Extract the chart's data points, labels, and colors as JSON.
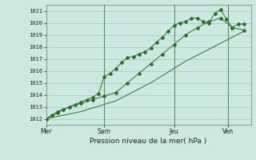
{
  "title": "Pression niveau de la mer( hPa )",
  "ylabel_ticks": [
    1012,
    1013,
    1014,
    1015,
    1016,
    1017,
    1018,
    1019,
    1020,
    1021
  ],
  "ylim": [
    1011.5,
    1021.5
  ],
  "bg_color": "#cce8e0",
  "grid_color": "#99ccbb",
  "line_color": "#2d6e2d",
  "vline_color": "#4a8a4a",
  "series1_x": [
    0,
    0.25,
    0.5,
    0.75,
    1.0,
    1.25,
    1.5,
    1.75,
    2.0,
    2.25,
    2.5,
    2.75,
    3.0,
    3.25,
    3.5,
    3.75,
    4.0,
    4.25,
    4.5,
    4.75,
    5.0,
    5.25,
    5.5,
    5.75,
    6.0,
    6.25,
    6.5,
    6.75,
    7.0,
    7.25,
    7.5,
    7.75,
    8.0,
    8.25,
    8.5
  ],
  "series1_y": [
    1012.0,
    1012.3,
    1012.6,
    1012.8,
    1013.0,
    1013.2,
    1013.4,
    1013.6,
    1013.8,
    1014.1,
    1015.5,
    1015.8,
    1016.2,
    1016.7,
    1017.1,
    1017.2,
    1017.4,
    1017.6,
    1017.9,
    1018.4,
    1018.8,
    1019.3,
    1019.8,
    1020.0,
    1020.1,
    1020.4,
    1020.4,
    1020.1,
    1020.0,
    1020.8,
    1021.1,
    1020.3,
    1019.6,
    1019.9,
    1019.9
  ],
  "series2_x": [
    0,
    0.5,
    1.0,
    1.5,
    2.0,
    2.5,
    3.0,
    3.5,
    4.0,
    4.5,
    5.0,
    5.5,
    6.0,
    6.5,
    7.0,
    7.5,
    8.0,
    8.5
  ],
  "series2_y": [
    1012.0,
    1012.5,
    1013.0,
    1013.3,
    1013.6,
    1013.9,
    1014.2,
    1015.0,
    1015.8,
    1016.6,
    1017.4,
    1018.2,
    1019.0,
    1019.6,
    1020.1,
    1020.4,
    1019.6,
    1019.4
  ],
  "series3_x": [
    0,
    1.5,
    3.0,
    4.5,
    6.0,
    7.5,
    8.5
  ],
  "series3_y": [
    1012.0,
    1012.6,
    1013.5,
    1015.0,
    1016.8,
    1018.3,
    1019.3
  ],
  "xlim": [
    0,
    8.8
  ],
  "xtick_positions": [
    0,
    2.5,
    5.5,
    7.8
  ],
  "xtick_labels": [
    "Mer",
    "Sam",
    "Jeu",
    "Ven"
  ],
  "vline_positions": [
    2.5,
    5.5,
    7.8
  ]
}
